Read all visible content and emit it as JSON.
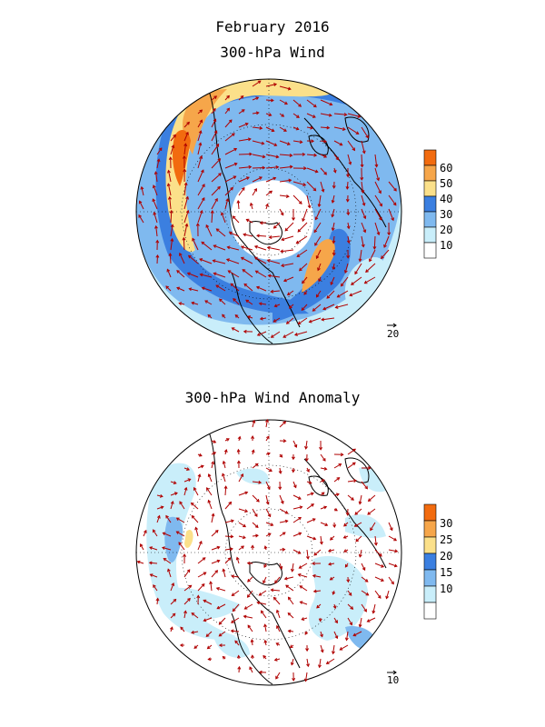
{
  "header": {
    "title": "February 2016",
    "subtitle": "300-hPa Wind"
  },
  "panels": [
    {
      "title": "",
      "colorbar": {
        "labels": [
          "60",
          "50",
          "40",
          "30",
          "20",
          "10"
        ],
        "colors": [
          "#f26b0f",
          "#f6a64a",
          "#fbe08a",
          "#3b7fe0",
          "#7fb9ef",
          "#c9eefa",
          "#ffffff"
        ]
      },
      "reference_vector": "20"
    },
    {
      "title": "300-hPa Wind Anomaly",
      "colorbar": {
        "labels": [
          "30",
          "25",
          "20",
          "15",
          "10"
        ],
        "colors": [
          "#f26b0f",
          "#f6a64a",
          "#fbe08a",
          "#3b7fe0",
          "#7fb9ef",
          "#c9eefa",
          "#ffffff"
        ]
      },
      "reference_vector": "10"
    }
  ],
  "colors": {
    "vector": "#b00000",
    "coast": "#000000"
  }
}
